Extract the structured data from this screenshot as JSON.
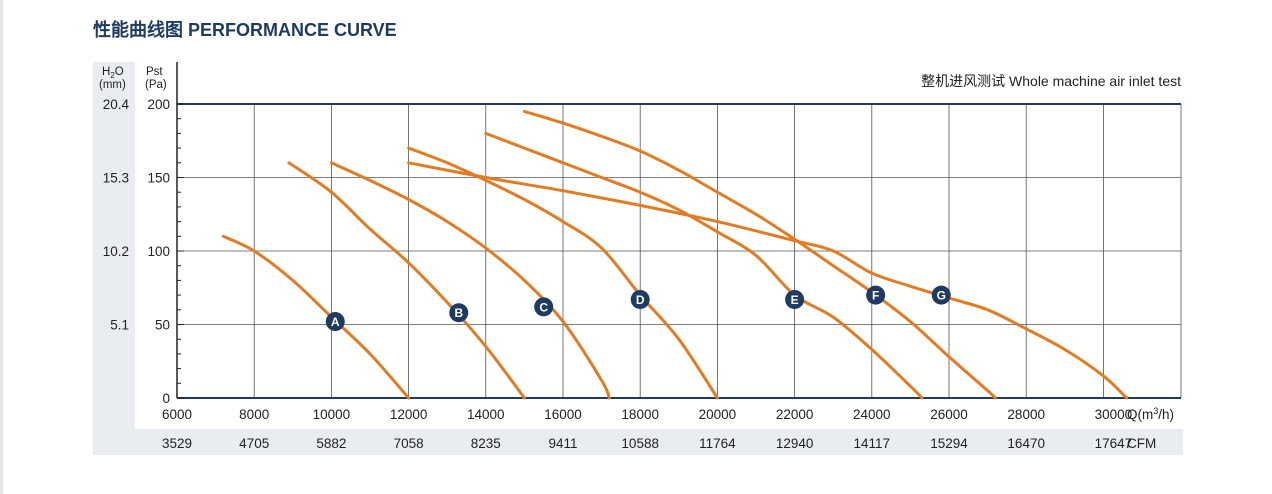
{
  "title": "性能曲线图 PERFORMANCE CURVE",
  "test_label": "整机进风测试 Whole machine air inlet test",
  "colors": {
    "curve": "#e27b22",
    "marker": "#1f3b63",
    "grid": "#555555",
    "band": "#e9edf1",
    "title": "#1f3b63"
  },
  "axis_units": {
    "h2o_top": "H",
    "h2o_sub": "2",
    "h2o_rest": "O",
    "h2o_unit": "(mm)",
    "pst": "Pst",
    "pst_unit": "(Pa)",
    "q_prefix": "Q(m",
    "q_sup": "3",
    "q_suffix": "/h)",
    "cfm_unit": "CFM"
  },
  "chart_data": {
    "type": "line",
    "title": "性能曲线图 PERFORMANCE CURVE",
    "xlabel": "Q(m³/h)",
    "ylabel": "Pst (Pa)",
    "xlim": [
      6000,
      31000
    ],
    "ylim": [
      0,
      200
    ],
    "grid": true,
    "x_ticks": [
      "6000",
      "8000",
      "10000",
      "12000",
      "14000",
      "16000",
      "18000",
      "20000",
      "22000",
      "24000",
      "26000",
      "28000",
      "30000"
    ],
    "x_ticks_cfm": [
      "3529",
      "4705",
      "5882",
      "7058",
      "8235",
      "9411",
      "10588",
      "11764",
      "12940",
      "14117",
      "15294",
      "16470",
      "17647"
    ],
    "y_ticks_pa": [
      "0",
      "50",
      "100",
      "150",
      "200"
    ],
    "y_ticks_h2o": [
      "5.1",
      "10.2",
      "15.3",
      "20.4"
    ],
    "series": [
      {
        "name": "A",
        "marker_x": 10100,
        "marker_y": 52,
        "points": [
          [
            7200,
            110
          ],
          [
            8000,
            100
          ],
          [
            9000,
            80
          ],
          [
            10000,
            55
          ],
          [
            11000,
            30
          ],
          [
            12000,
            0
          ]
        ]
      },
      {
        "name": "B",
        "marker_x": 13300,
        "marker_y": 58,
        "points": [
          [
            8900,
            160
          ],
          [
            10000,
            140
          ],
          [
            11000,
            115
          ],
          [
            12000,
            92
          ],
          [
            13000,
            65
          ],
          [
            14000,
            35
          ],
          [
            15000,
            0
          ]
        ]
      },
      {
        "name": "C",
        "marker_x": 15500,
        "marker_y": 62,
        "points": [
          [
            10000,
            160
          ],
          [
            11000,
            148
          ],
          [
            12000,
            135
          ],
          [
            13000,
            120
          ],
          [
            14000,
            102
          ],
          [
            15000,
            80
          ],
          [
            16000,
            52
          ],
          [
            17000,
            12
          ],
          [
            17200,
            0
          ]
        ]
      },
      {
        "name": "D",
        "marker_x": 18000,
        "marker_y": 67,
        "points": [
          [
            12000,
            170
          ],
          [
            13000,
            160
          ],
          [
            14000,
            148
          ],
          [
            15000,
            135
          ],
          [
            16000,
            120
          ],
          [
            17000,
            102
          ],
          [
            18000,
            70
          ],
          [
            19000,
            40
          ],
          [
            20000,
            0
          ]
        ]
      },
      {
        "name": "E",
        "marker_x": 22000,
        "marker_y": 67,
        "points": [
          [
            14000,
            180
          ],
          [
            15000,
            170
          ],
          [
            16000,
            160
          ],
          [
            17000,
            150
          ],
          [
            18000,
            140
          ],
          [
            19000,
            128
          ],
          [
            20000,
            113
          ],
          [
            21000,
            97
          ],
          [
            22000,
            70
          ],
          [
            23000,
            55
          ],
          [
            24000,
            33
          ],
          [
            25000,
            8
          ],
          [
            25300,
            0
          ]
        ]
      },
      {
        "name": "F",
        "marker_x": 24100,
        "marker_y": 70,
        "points": [
          [
            15000,
            195
          ],
          [
            16000,
            187
          ],
          [
            17000,
            178
          ],
          [
            18000,
            168
          ],
          [
            19000,
            155
          ],
          [
            20000,
            140
          ],
          [
            21000,
            125
          ],
          [
            22000,
            108
          ],
          [
            23000,
            90
          ],
          [
            24000,
            72
          ],
          [
            25000,
            52
          ],
          [
            26000,
            28
          ],
          [
            27000,
            5
          ],
          [
            27200,
            0
          ]
        ]
      },
      {
        "name": "G",
        "marker_x": 25800,
        "marker_y": 70,
        "points": [
          [
            12000,
            160
          ],
          [
            14000,
            150
          ],
          [
            16000,
            141
          ],
          [
            18000,
            131
          ],
          [
            20000,
            120
          ],
          [
            22000,
            107
          ],
          [
            23000,
            100
          ],
          [
            24000,
            85
          ],
          [
            25000,
            76
          ],
          [
            26000,
            68
          ],
          [
            27000,
            60
          ],
          [
            28000,
            47
          ],
          [
            29000,
            33
          ],
          [
            30000,
            15
          ],
          [
            30600,
            0
          ]
        ]
      }
    ]
  }
}
